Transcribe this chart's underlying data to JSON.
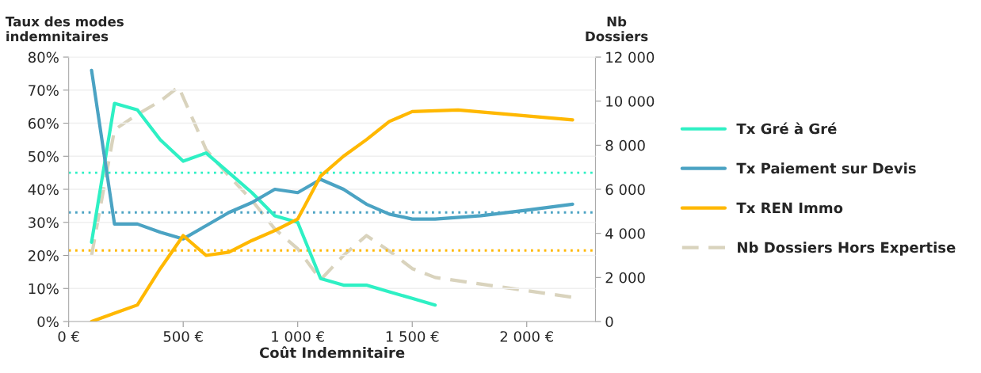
{
  "chart_data": {
    "type": "line",
    "xlabel": "Coût Indemnitaire",
    "ylabel": "Taux des modes\nindemnitaires",
    "y2label": "Nb\nDossiers",
    "series": [
      {
        "name": "Tx Gré à Gré",
        "color": "#2ef0c4",
        "x": [
          100,
          200,
          300,
          400,
          500,
          600,
          700,
          800,
          900,
          1000,
          1100,
          1200,
          1300,
          1400,
          1500,
          1600
        ],
        "values": [
          24,
          66,
          64,
          55,
          48.5,
          51,
          45,
          39,
          32,
          30,
          13,
          11,
          11,
          9,
          7,
          5
        ]
      },
      {
        "name": "Tx Paiement sur Devis",
        "color": "#4ba3c3",
        "x": [
          100,
          200,
          300,
          400,
          500,
          600,
          700,
          800,
          900,
          1000,
          1100,
          1200,
          1300,
          1400,
          1500,
          1600,
          1800,
          2000,
          2200
        ],
        "values": [
          76,
          29.5,
          29.5,
          27,
          25,
          29,
          33,
          36,
          40,
          39,
          43,
          40,
          35.5,
          32.5,
          31,
          31,
          32,
          33.7,
          35.5
        ]
      },
      {
        "name": "Tx REN Immo",
        "color": "#ffb800",
        "x": [
          100,
          200,
          300,
          400,
          500,
          600,
          700,
          800,
          900,
          1000,
          1100,
          1200,
          1300,
          1400,
          1500,
          1700,
          2200
        ],
        "values": [
          0,
          2.5,
          5,
          16,
          26,
          20,
          21,
          24.5,
          27.5,
          31,
          44,
          50,
          55,
          60.5,
          63.5,
          64,
          61
        ]
      },
      {
        "name": "Nb Dossiers Hors Expertise",
        "color": "#d9d3bd",
        "axis": "y2",
        "line_style": "dashed",
        "x": [
          100,
          200,
          300,
          400,
          480,
          600,
          700,
          800,
          900,
          1000,
          1100,
          1200,
          1300,
          1400,
          1500,
          1600,
          2200
        ],
        "values": [
          3000,
          8700,
          9400,
          10000,
          10650,
          7800,
          6600,
          5500,
          4200,
          3300,
          1900,
          3000,
          3900,
          3200,
          2400,
          2000,
          1100
        ]
      }
    ],
    "line_style": "solid",
    "ref_lines": [
      {
        "axis": "y",
        "value": 45,
        "color": "#2ef0c4",
        "line_style": "dotted"
      },
      {
        "axis": "y",
        "value": 33,
        "color": "#4ba3c3",
        "line_style": "dotted"
      },
      {
        "axis": "y",
        "value": 21.5,
        "color": "#ffb800",
        "line_style": "dotted"
      }
    ],
    "xlim": [
      0,
      2300
    ],
    "xticks": [
      {
        "value": 0,
        "label": "0 €"
      },
      {
        "value": 500,
        "label": "500 €"
      },
      {
        "value": 1000,
        "label": "1 000 €"
      },
      {
        "value": 1500,
        "label": "1 500 €"
      },
      {
        "value": 2000,
        "label": "2 000 €"
      }
    ],
    "ylim": [
      0,
      80
    ],
    "yticks": [
      {
        "value": 0,
        "label": "0%"
      },
      {
        "value": 10,
        "label": "10%"
      },
      {
        "value": 20,
        "label": "20%"
      },
      {
        "value": 30,
        "label": "30%"
      },
      {
        "value": 40,
        "label": "40%"
      },
      {
        "value": 50,
        "label": "50%"
      },
      {
        "value": 60,
        "label": "60%"
      },
      {
        "value": 70,
        "label": "70%"
      },
      {
        "value": 80,
        "label": "80%"
      }
    ],
    "y2lim": [
      0,
      12000
    ],
    "y2ticks": [
      0,
      {
        "value": 2000,
        "label": "2 000"
      },
      {
        "value": 4000,
        "label": "4 000"
      },
      {
        "value": 6000,
        "label": "6 000"
      },
      {
        "value": 8000,
        "label": "8 000"
      },
      {
        "value": 10000,
        "label": "10 000"
      },
      {
        "value": 12000,
        "label": "12 000"
      }
    ],
    "grid": "y",
    "legend": "right",
    "marker": "none"
  }
}
